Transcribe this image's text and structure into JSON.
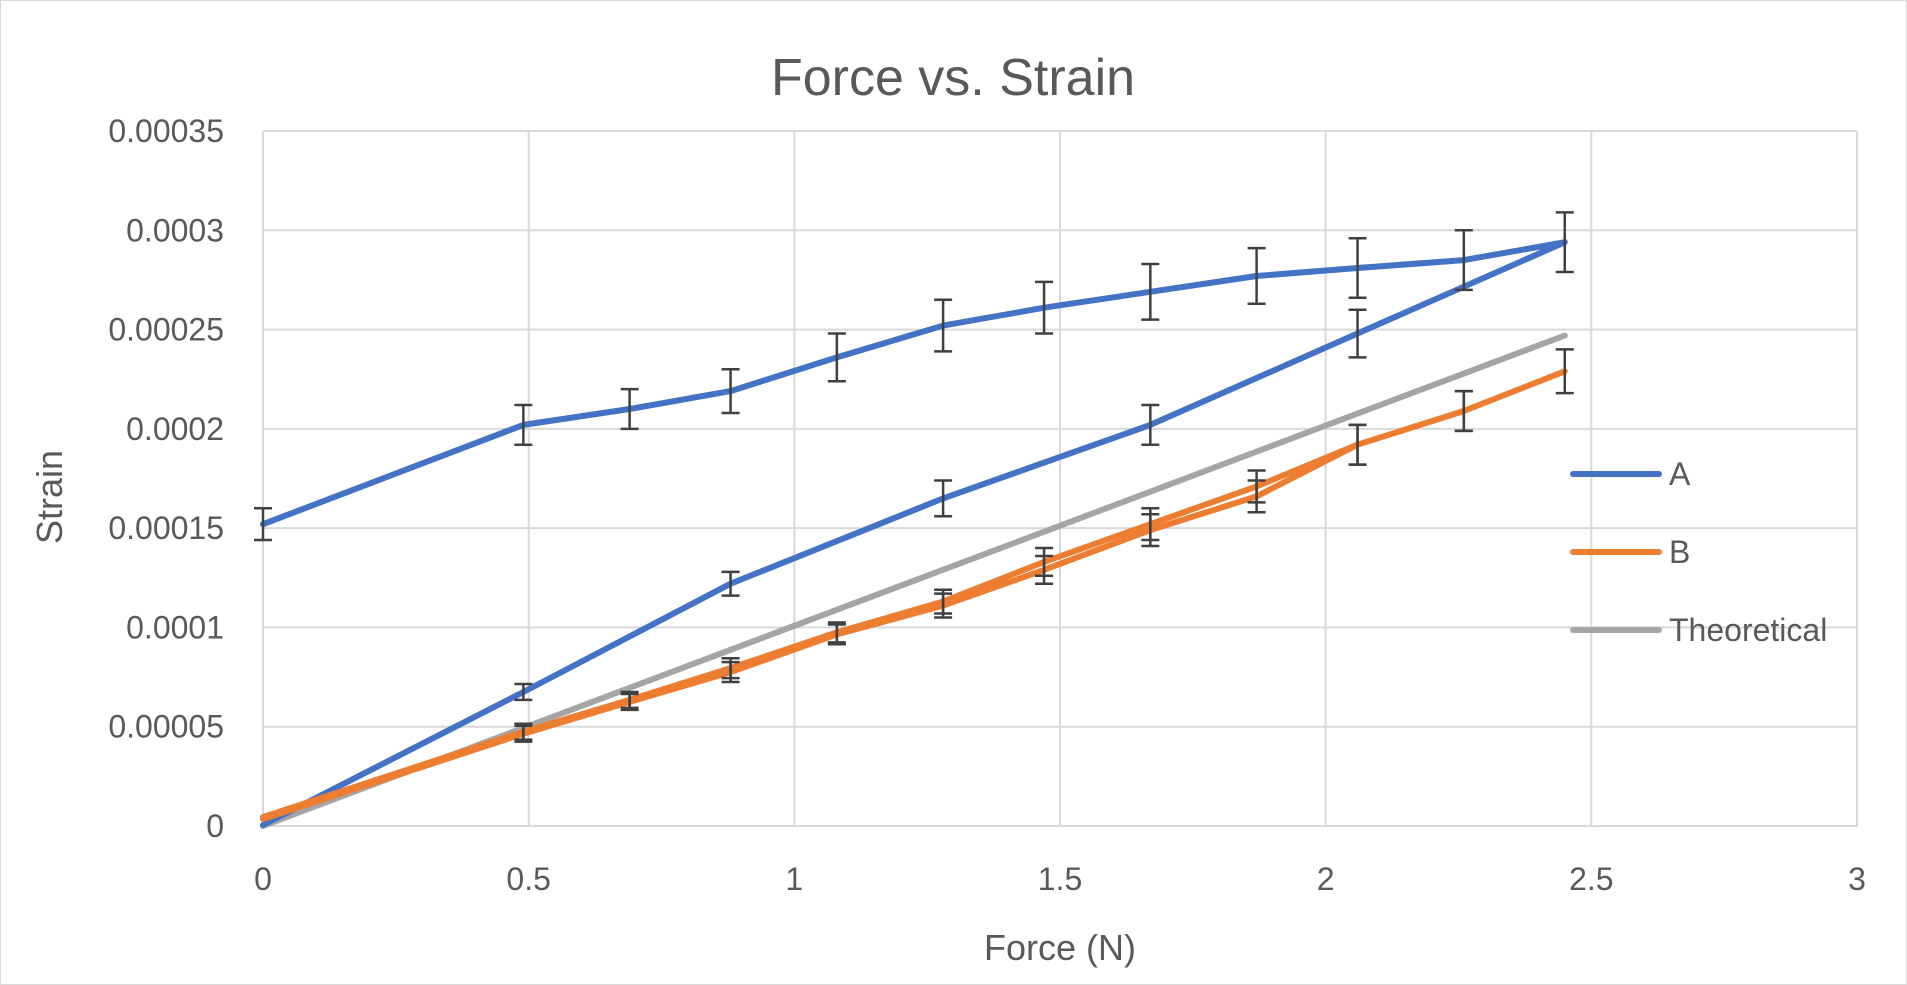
{
  "chart_data": {
    "type": "line",
    "title": "Force vs. Strain",
    "xlabel": "Force (N)",
    "ylabel": "Strain",
    "xlim": [
      0,
      3
    ],
    "ylim": [
      0,
      0.00035
    ],
    "x_ticks": [
      0,
      0.5,
      1,
      1.5,
      2,
      2.5,
      3
    ],
    "x_tick_labels": [
      "0",
      "0.5",
      "1",
      "1.5",
      "2",
      "2.5",
      "3"
    ],
    "y_ticks": [
      0,
      5e-05,
      0.0001,
      0.00015,
      0.0002,
      0.00025,
      0.0003,
      0.00035
    ],
    "y_tick_labels": [
      "0",
      "0.00005",
      "0.0001",
      "0.00015",
      "0.0002",
      "0.00025",
      "0.0003",
      "0.00035"
    ],
    "grid": true,
    "legend_position": "right",
    "series": [
      {
        "name": "A",
        "color": "#4472C4",
        "x": [
          0,
          0.49,
          0.88,
          1.28,
          1.67,
          2.06,
          2.45,
          2.26,
          2.06,
          1.87,
          1.67,
          1.47,
          1.28,
          1.08,
          0.88,
          0.69,
          0.49,
          0
        ],
        "y": [
          5e-07,
          6.75e-05,
          0.000122,
          0.000165,
          0.000202,
          0.000248,
          0.000294,
          0.000285,
          0.000281,
          0.000277,
          0.000269,
          0.000261,
          0.000252,
          0.000236,
          0.000219,
          0.00021,
          0.000202,
          0.000152
        ],
        "error": [
          0,
          4e-06,
          6e-06,
          9e-06,
          1e-05,
          1.2e-05,
          1.5e-05,
          1.5e-05,
          1.5e-05,
          1.4e-05,
          1.4e-05,
          1.3e-05,
          1.3e-05,
          1.2e-05,
          1.1e-05,
          1e-05,
          1e-05,
          8e-06
        ]
      },
      {
        "name": "B",
        "color": "#ED7D31",
        "x": [
          0,
          0.49,
          0.69,
          0.88,
          1.08,
          1.28,
          1.47,
          1.67,
          1.87,
          2.06,
          2.26,
          2.45,
          2.26,
          2.06,
          1.87,
          1.67,
          1.47,
          1.28,
          1.08,
          0.88,
          0.69,
          0.49,
          0
        ],
        "y": [
          4.5e-06,
          4.75e-05,
          6.35e-05,
          7.95e-05,
          9.75e-05,
          0.000113,
          0.000133,
          0.000152,
          0.000171,
          0.000192,
          0.000209,
          0.000229,
          0.000209,
          0.000192,
          0.000166,
          0.000149,
          0.000129,
          0.000111,
          9.65e-05,
          7.75e-05,
          6.25e-05,
          4.65e-05,
          3.5e-06
        ],
        "error": [
          0,
          4e-06,
          4e-06,
          5e-06,
          5e-06,
          6e-06,
          7e-06,
          8e-06,
          8e-06,
          1e-05,
          1e-05,
          1.1e-05,
          1e-05,
          1e-05,
          8e-06,
          8e-06,
          7e-06,
          6e-06,
          5e-06,
          5e-06,
          4e-06,
          4e-06,
          0
        ]
      },
      {
        "name": "Theoretical",
        "color": "#A5A5A5",
        "x": [
          0,
          2.45
        ],
        "y": [
          0,
          0.000247
        ],
        "error": []
      }
    ]
  }
}
